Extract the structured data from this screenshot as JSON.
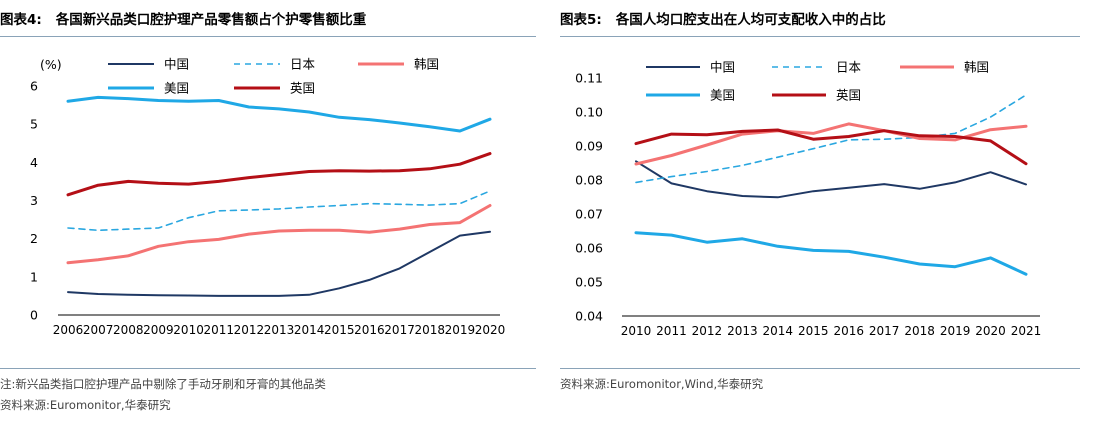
{
  "left": {
    "fig_label": "图表4:",
    "title": "各国新兴品类口腔护理产品零售额占个护零售额比重",
    "note": "注:新兴品类指口腔护理产品中剔除了手动牙刷和牙膏的其他品类",
    "source": "资料来源:Euromonitor,华泰研究"
  },
  "right": {
    "fig_label": "图表5:",
    "title": "各国人均口腔支出在人均可支配收入中的占比",
    "source": "资料来源:Euromonitor,Wind,华泰研究"
  },
  "colors": {
    "china": "#1f3864",
    "japan": "#2aa7e0",
    "korea": "#f47373",
    "usa": "#1fa8e6",
    "uk": "#b40f16",
    "rule": "#8aa3b8"
  },
  "chart_data": [
    {
      "type": "line",
      "title": "",
      "ylabel": "(%)",
      "ylim": [
        0,
        6
      ],
      "yticks": [
        "0",
        "1",
        "2",
        "3",
        "4",
        "5",
        "6"
      ],
      "x": [
        "2006",
        "2007",
        "2008",
        "2009",
        "2010",
        "2011",
        "2012",
        "2013",
        "2014",
        "2015",
        "2016",
        "2017",
        "2018",
        "2019",
        "2020"
      ],
      "legend_placement": "top",
      "series": [
        {
          "name": "中国",
          "key": "china",
          "dash": false,
          "width": 2,
          "values": [
            0.6,
            0.55,
            0.53,
            0.52,
            0.51,
            0.5,
            0.5,
            0.5,
            0.53,
            0.7,
            0.92,
            1.22,
            1.65,
            2.08,
            2.18
          ]
        },
        {
          "name": "日本",
          "key": "japan",
          "dash": true,
          "width": 1.6,
          "values": [
            2.28,
            2.22,
            2.25,
            2.28,
            2.55,
            2.73,
            2.75,
            2.78,
            2.83,
            2.87,
            2.92,
            2.9,
            2.88,
            2.92,
            3.25
          ]
        },
        {
          "name": "韩国",
          "key": "korea",
          "dash": false,
          "width": 3,
          "values": [
            1.37,
            1.45,
            1.55,
            1.8,
            1.92,
            1.98,
            2.12,
            2.2,
            2.22,
            2.22,
            2.17,
            2.25,
            2.37,
            2.42,
            2.87
          ]
        },
        {
          "name": "美国",
          "key": "usa",
          "dash": false,
          "width": 3,
          "values": [
            5.6,
            5.7,
            5.67,
            5.62,
            5.6,
            5.62,
            5.45,
            5.4,
            5.32,
            5.18,
            5.12,
            5.03,
            4.93,
            4.82,
            5.13
          ]
        },
        {
          "name": "英国",
          "key": "uk",
          "dash": false,
          "width": 3,
          "values": [
            3.15,
            3.4,
            3.5,
            3.45,
            3.43,
            3.5,
            3.6,
            3.68,
            3.76,
            3.78,
            3.77,
            3.78,
            3.83,
            3.95,
            4.23
          ]
        }
      ]
    },
    {
      "type": "line",
      "title": "",
      "ylim": [
        0.04,
        0.11
      ],
      "yticks": [
        "0.04",
        "0.05",
        "0.06",
        "0.07",
        "0.08",
        "0.09",
        "0.10",
        "0.11"
      ],
      "x": [
        "2010",
        "2011",
        "2012",
        "2013",
        "2014",
        "2015",
        "2016",
        "2017",
        "2018",
        "2019",
        "2020",
        "2021"
      ],
      "legend_placement": "top",
      "series": [
        {
          "name": "中国",
          "key": "china",
          "dash": false,
          "width": 2,
          "values": [
            0.0855,
            0.079,
            0.0767,
            0.0753,
            0.0749,
            0.0767,
            0.0777,
            0.0788,
            0.0774,
            0.0793,
            0.0823,
            0.0787
          ]
        },
        {
          "name": "日本",
          "key": "japan",
          "dash": true,
          "width": 1.6,
          "values": [
            0.0793,
            0.081,
            0.0825,
            0.0843,
            0.0867,
            0.0892,
            0.0918,
            0.092,
            0.0925,
            0.0937,
            0.0985,
            0.105
          ]
        },
        {
          "name": "韩国",
          "key": "korea",
          "dash": false,
          "width": 3,
          "values": [
            0.0847,
            0.0872,
            0.0903,
            0.0935,
            0.0945,
            0.0937,
            0.0965,
            0.0945,
            0.0922,
            0.0918,
            0.0948,
            0.0958
          ]
        },
        {
          "name": "美国",
          "key": "usa",
          "dash": false,
          "width": 3,
          "values": [
            0.0645,
            0.0638,
            0.0617,
            0.0627,
            0.0605,
            0.0593,
            0.059,
            0.0573,
            0.0553,
            0.0545,
            0.0571,
            0.0523
          ]
        },
        {
          "name": "英国",
          "key": "uk",
          "dash": false,
          "width": 3,
          "values": [
            0.0907,
            0.0935,
            0.0933,
            0.0943,
            0.0947,
            0.092,
            0.0928,
            0.0945,
            0.093,
            0.0928,
            0.0915,
            0.0848
          ]
        }
      ]
    }
  ]
}
